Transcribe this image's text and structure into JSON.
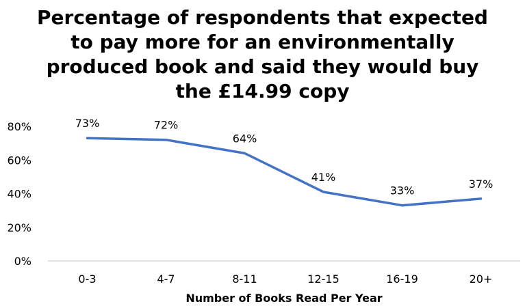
{
  "chart_data": {
    "type": "line",
    "title_lines": [
      "Percentage of respondents that expected",
      "to pay more for an environmentally",
      "produced book and said they would buy",
      "the £14.99 copy"
    ],
    "xlabel": "Number of Books Read Per Year",
    "ylabel": "",
    "categories": [
      "0-3",
      "4-7",
      "8-11",
      "12-15",
      "16-19",
      "20+"
    ],
    "series": [
      {
        "values": [
          73,
          72,
          64,
          41,
          33,
          37
        ],
        "labels": [
          "73%",
          "72%",
          "64%",
          "41%",
          "33%",
          "37%"
        ],
        "color": "#4472C4"
      }
    ],
    "ylim": [
      0,
      80
    ],
    "yticks": [
      0,
      20,
      40,
      60,
      80
    ],
    "ytick_labels": [
      "0%",
      "20%",
      "40%",
      "60%",
      "80%"
    ],
    "grid": false,
    "legend": "none"
  }
}
